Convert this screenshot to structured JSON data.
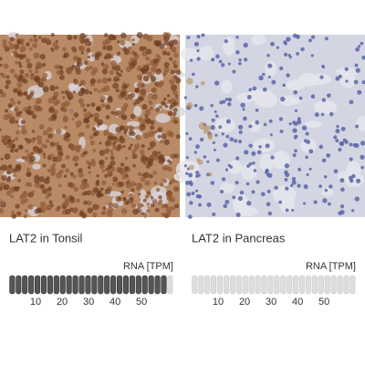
{
  "panels": [
    {
      "title": "LAT2 in Tonsil",
      "rna_label": "RNA [TPM]",
      "rna_tpm": 58,
      "xlim": [
        0,
        62
      ],
      "xticks": [
        10,
        20,
        30,
        40,
        50
      ]
    },
    {
      "title": "LAT2 in Pancreas",
      "rna_label": "RNA [TPM]",
      "rna_tpm": 0,
      "xlim": [
        0,
        62
      ],
      "xticks": [
        10,
        20,
        30,
        40,
        50
      ]
    }
  ]
}
